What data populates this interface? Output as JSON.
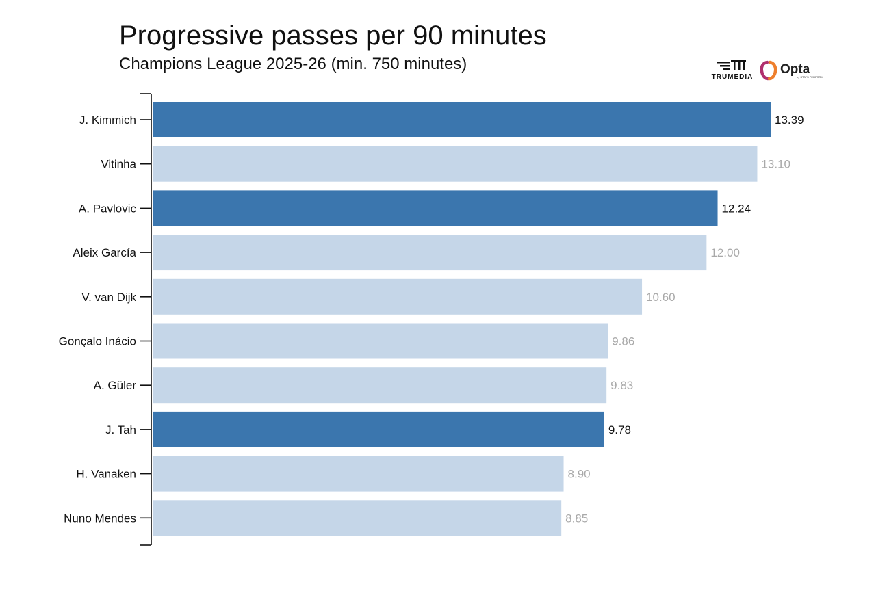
{
  "header": {
    "title": "Progressive passes per 90 minutes",
    "subtitle": "Champions League 2025-26 (min. 750 minutes)"
  },
  "logos": {
    "trumedia": "TRUMEDIA",
    "opta": "Opta",
    "opta_sub": "by STATS PERFORM"
  },
  "colors": {
    "highlight": "#3b76ae",
    "muted": "#c5d6e8",
    "highlight_label": "#111111",
    "muted_label": "#a9a9a9",
    "axis": "#111111"
  },
  "chart_data": {
    "type": "bar",
    "orientation": "horizontal",
    "title": "Progressive passes per 90 minutes",
    "subtitle": "Champions League 2025-26 (min. 750 minutes)",
    "xlabel": "",
    "ylabel": "",
    "xlim": [
      0,
      13.39
    ],
    "grid": false,
    "categories": [
      "J. Kimmich",
      "Vitinha",
      "A. Pavlovic",
      "Aleix García",
      "V. van Dijk",
      "Gonçalo Inácio",
      "A. Güler",
      "J. Tah",
      "H. Vanaken",
      "Nuno Mendes"
    ],
    "values": [
      13.39,
      13.1,
      12.24,
      12.0,
      10.6,
      9.86,
      9.83,
      9.78,
      8.9,
      8.85
    ],
    "value_labels": [
      "13.39",
      "13.10",
      "12.24",
      "12.00",
      "10.60",
      "9.86",
      "9.83",
      "9.78",
      "8.90",
      "8.85"
    ],
    "highlighted": [
      true,
      false,
      true,
      false,
      false,
      false,
      false,
      true,
      false,
      false
    ]
  }
}
